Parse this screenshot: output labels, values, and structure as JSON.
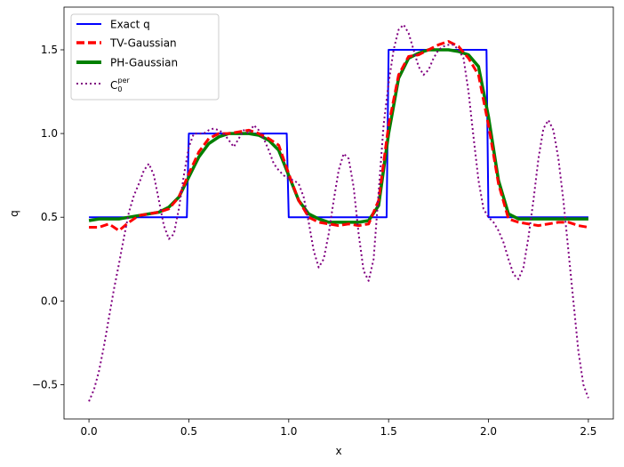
{
  "chart_data": {
    "type": "line",
    "xlabel": "x",
    "ylabel": "q",
    "xlim": [
      -0.125,
      2.625
    ],
    "ylim": [
      -0.705,
      1.755
    ],
    "xticks": [
      0.0,
      0.5,
      1.0,
      1.5,
      2.0,
      2.5
    ],
    "xtick_labels": [
      "0.0",
      "0.5",
      "1.0",
      "1.5",
      "2.0",
      "2.5"
    ],
    "yticks": [
      -0.5,
      0.0,
      0.5,
      1.0,
      1.5
    ],
    "ytick_labels": [
      "−0.5",
      "0.0",
      "0.5",
      "1.0",
      "1.5"
    ],
    "grid": false,
    "legend_position": "top-left",
    "series": [
      {
        "name": "Exact q",
        "color": "#0000ff",
        "style": "solid",
        "x": [
          0.0,
          0.49,
          0.5,
          0.99,
          1.0,
          1.49,
          1.5,
          1.99,
          2.0,
          2.5
        ],
        "y": [
          0.5,
          0.5,
          1.0,
          1.0,
          0.5,
          0.5,
          1.5,
          1.5,
          0.5,
          0.5
        ]
      },
      {
        "name": "TV-Gaussian",
        "color": "#ff0000",
        "style": "dashed",
        "x": [
          0.0,
          0.05,
          0.1,
          0.15,
          0.2,
          0.25,
          0.3,
          0.35,
          0.4,
          0.45,
          0.5,
          0.55,
          0.6,
          0.65,
          0.7,
          0.75,
          0.8,
          0.85,
          0.9,
          0.95,
          1.0,
          1.05,
          1.1,
          1.15,
          1.2,
          1.25,
          1.3,
          1.35,
          1.4,
          1.45,
          1.5,
          1.55,
          1.6,
          1.65,
          1.7,
          1.75,
          1.8,
          1.85,
          1.9,
          1.95,
          2.0,
          2.05,
          2.1,
          2.15,
          2.2,
          2.25,
          2.3,
          2.35,
          2.4,
          2.45,
          2.5
        ],
        "y": [
          0.44,
          0.44,
          0.46,
          0.42,
          0.47,
          0.51,
          0.52,
          0.53,
          0.55,
          0.62,
          0.76,
          0.89,
          0.97,
          1.0,
          1.0,
          1.01,
          1.02,
          1.0,
          0.97,
          0.93,
          0.76,
          0.6,
          0.5,
          0.47,
          0.46,
          0.45,
          0.46,
          0.45,
          0.46,
          0.6,
          1.05,
          1.35,
          1.46,
          1.47,
          1.5,
          1.53,
          1.55,
          1.52,
          1.45,
          1.35,
          1.05,
          0.7,
          0.49,
          0.47,
          0.46,
          0.45,
          0.46,
          0.47,
          0.47,
          0.45,
          0.44
        ]
      },
      {
        "name": "PH-Gaussian",
        "color": "#008000",
        "style": "solid-thick",
        "x": [
          0.0,
          0.05,
          0.1,
          0.15,
          0.2,
          0.25,
          0.3,
          0.35,
          0.4,
          0.45,
          0.5,
          0.55,
          0.6,
          0.65,
          0.7,
          0.75,
          0.8,
          0.85,
          0.9,
          0.95,
          1.0,
          1.05,
          1.1,
          1.15,
          1.2,
          1.25,
          1.3,
          1.35,
          1.4,
          1.45,
          1.5,
          1.55,
          1.6,
          1.65,
          1.7,
          1.75,
          1.8,
          1.85,
          1.9,
          1.95,
          2.0,
          2.05,
          2.1,
          2.15,
          2.2,
          2.25,
          2.3,
          2.35,
          2.4,
          2.45,
          2.5
        ],
        "y": [
          0.48,
          0.49,
          0.49,
          0.49,
          0.5,
          0.51,
          0.52,
          0.53,
          0.56,
          0.62,
          0.74,
          0.86,
          0.94,
          0.98,
          1.0,
          1.0,
          1.0,
          0.99,
          0.96,
          0.9,
          0.75,
          0.6,
          0.52,
          0.49,
          0.47,
          0.47,
          0.47,
          0.47,
          0.48,
          0.57,
          1.0,
          1.33,
          1.45,
          1.48,
          1.5,
          1.5,
          1.5,
          1.49,
          1.47,
          1.4,
          1.1,
          0.72,
          0.52,
          0.49,
          0.49,
          0.49,
          0.49,
          0.49,
          0.49,
          0.49,
          0.49
        ]
      },
      {
        "name": "C0per",
        "color": "#800080",
        "style": "dotted",
        "x": [
          0.0,
          0.025,
          0.05,
          0.075,
          0.1,
          0.125,
          0.15,
          0.175,
          0.2,
          0.225,
          0.25,
          0.275,
          0.3,
          0.325,
          0.35,
          0.375,
          0.4,
          0.425,
          0.45,
          0.475,
          0.5,
          0.525,
          0.55,
          0.575,
          0.6,
          0.625,
          0.65,
          0.675,
          0.7,
          0.725,
          0.75,
          0.775,
          0.8,
          0.825,
          0.85,
          0.875,
          0.9,
          0.925,
          0.95,
          0.975,
          1.0,
          1.025,
          1.05,
          1.075,
          1.1,
          1.125,
          1.15,
          1.175,
          1.2,
          1.225,
          1.25,
          1.275,
          1.3,
          1.325,
          1.35,
          1.375,
          1.4,
          1.425,
          1.45,
          1.475,
          1.5,
          1.525,
          1.55,
          1.575,
          1.6,
          1.625,
          1.65,
          1.675,
          1.7,
          1.725,
          1.75,
          1.775,
          1.8,
          1.825,
          1.85,
          1.875,
          1.9,
          1.925,
          1.95,
          1.975,
          2.0,
          2.025,
          2.05,
          2.075,
          2.1,
          2.125,
          2.15,
          2.175,
          2.2,
          2.225,
          2.25,
          2.275,
          2.3,
          2.325,
          2.35,
          2.375,
          2.4,
          2.425,
          2.45,
          2.475,
          2.5
        ],
        "y": [
          -0.6,
          -0.53,
          -0.42,
          -0.27,
          -0.1,
          0.07,
          0.22,
          0.38,
          0.53,
          0.63,
          0.7,
          0.78,
          0.82,
          0.75,
          0.6,
          0.45,
          0.37,
          0.4,
          0.55,
          0.75,
          0.92,
          1.0,
          1.0,
          1.0,
          1.02,
          1.03,
          1.02,
          1.0,
          0.96,
          0.92,
          0.97,
          1.02,
          1.0,
          1.05,
          1.02,
          0.97,
          0.9,
          0.82,
          0.78,
          0.75,
          0.73,
          0.72,
          0.7,
          0.62,
          0.47,
          0.3,
          0.2,
          0.25,
          0.4,
          0.6,
          0.78,
          0.88,
          0.85,
          0.68,
          0.4,
          0.18,
          0.12,
          0.25,
          0.65,
          1.05,
          1.3,
          1.5,
          1.62,
          1.65,
          1.6,
          1.5,
          1.4,
          1.35,
          1.38,
          1.45,
          1.5,
          1.52,
          1.53,
          1.53,
          1.5,
          1.45,
          1.25,
          0.98,
          0.72,
          0.55,
          0.5,
          0.47,
          0.42,
          0.35,
          0.25,
          0.16,
          0.13,
          0.2,
          0.38,
          0.6,
          0.85,
          1.03,
          1.08,
          1.02,
          0.85,
          0.6,
          0.3,
          0.0,
          -0.3,
          -0.5,
          -0.58
        ]
      }
    ],
    "legend": {
      "entries": [
        "Exact q",
        "TV-Gaussian",
        "PH-Gaussian"
      ],
      "c0_base": "C",
      "c0_sub": "0",
      "c0_sup": "per"
    }
  }
}
